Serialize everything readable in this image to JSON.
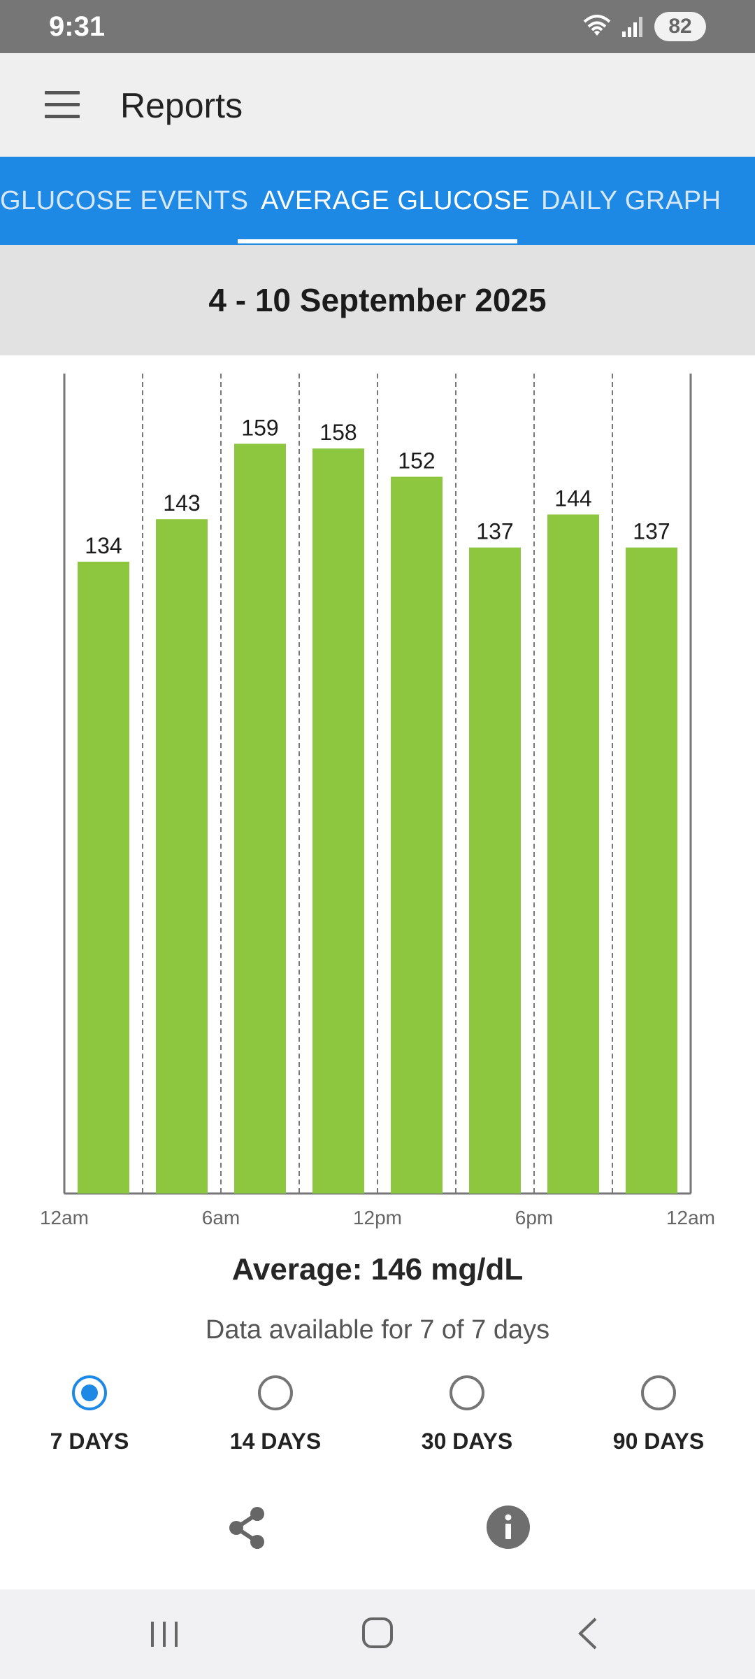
{
  "status_bar": {
    "time": "9:31",
    "battery": "82"
  },
  "app_bar": {
    "title": "Reports"
  },
  "tabs": [
    {
      "label": "GLUCOSE EVENTS",
      "active": false
    },
    {
      "label": "AVERAGE GLUCOSE",
      "active": true
    },
    {
      "label": "DAILY GRAPH",
      "active": false
    }
  ],
  "date_range": "4 - 10 September 2025",
  "chart_data": {
    "type": "bar",
    "values": [
      134,
      143,
      159,
      158,
      152,
      137,
      144,
      137
    ],
    "x_tick_labels": [
      "12am",
      "6am",
      "12pm",
      "6pm",
      "12am"
    ],
    "bar_color": "#8dc63f",
    "grid": "vertical dashed per 3-hour bucket"
  },
  "summary": {
    "average": "Average: 146 mg/dL",
    "availability": "Data available for 7 of 7 days"
  },
  "ranges": [
    {
      "label": "7 DAYS",
      "selected": true
    },
    {
      "label": "14 DAYS",
      "selected": false
    },
    {
      "label": "30 DAYS",
      "selected": false
    },
    {
      "label": "90 DAYS",
      "selected": false
    }
  ],
  "colors": {
    "accent": "#1e88e5",
    "bar": "#8dc63f"
  }
}
